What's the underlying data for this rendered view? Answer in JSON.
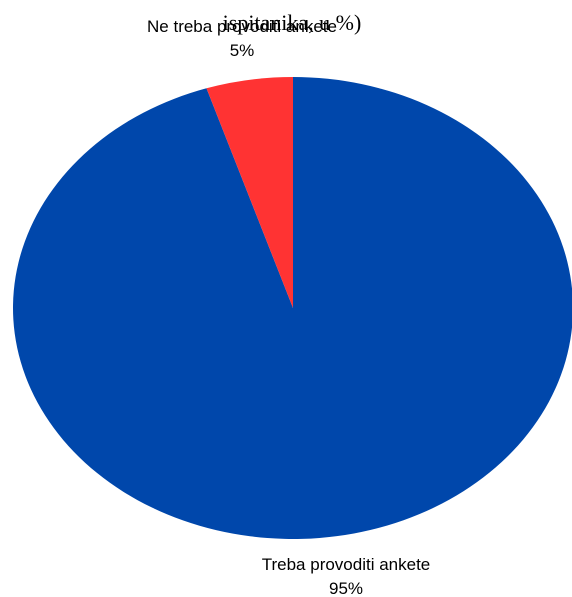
{
  "chart_data": {
    "type": "pie",
    "title": "ispitanika, u %)",
    "slices": [
      {
        "label": "Treba provoditi ankete",
        "value_label": "95%",
        "value": 95,
        "color": "#0047AB"
      },
      {
        "label": "Ne treba provoditi ankete",
        "value_label": "5%",
        "value": 5,
        "color": "#FF3333"
      }
    ],
    "start_angle_deg": 0,
    "direction": "clockwise",
    "legend": "none"
  }
}
